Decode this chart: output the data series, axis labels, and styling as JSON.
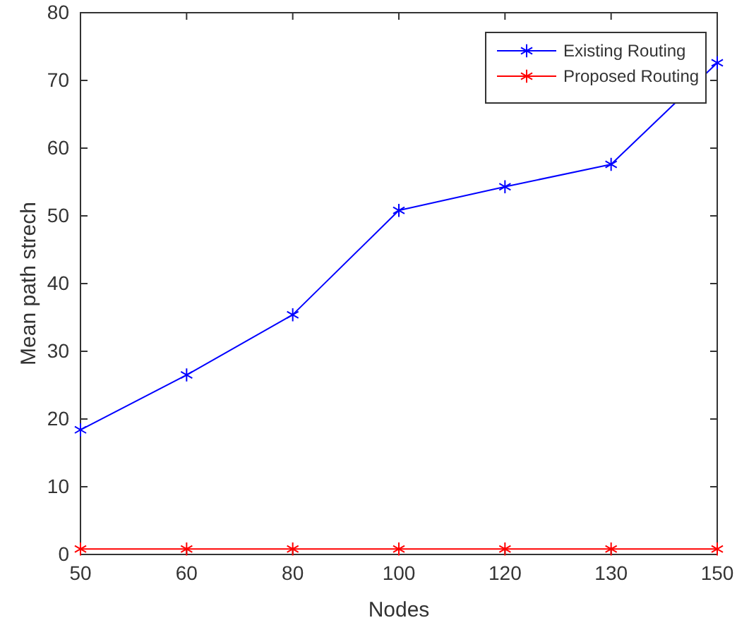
{
  "chart_data": {
    "type": "line",
    "xlabel": "Nodes",
    "ylabel": "Mean path strech",
    "categories": [
      "50",
      "60",
      "80",
      "100",
      "120",
      "130",
      "150"
    ],
    "series": [
      {
        "name": "Existing Routing",
        "color": "#0000ff",
        "values": [
          18.4,
          26.5,
          35.4,
          50.8,
          54.3,
          57.6,
          72.6
        ]
      },
      {
        "name": "Proposed Routing",
        "color": "#ff0000",
        "values": [
          0.8,
          0.8,
          0.8,
          0.8,
          0.8,
          0.8,
          0.8
        ]
      }
    ],
    "ylim": [
      0,
      80
    ],
    "yticks": [
      0,
      10,
      20,
      30,
      40,
      50,
      60,
      70,
      80
    ],
    "legend": "top right",
    "marker": "cross",
    "line_style": "solid",
    "grid": false
  }
}
